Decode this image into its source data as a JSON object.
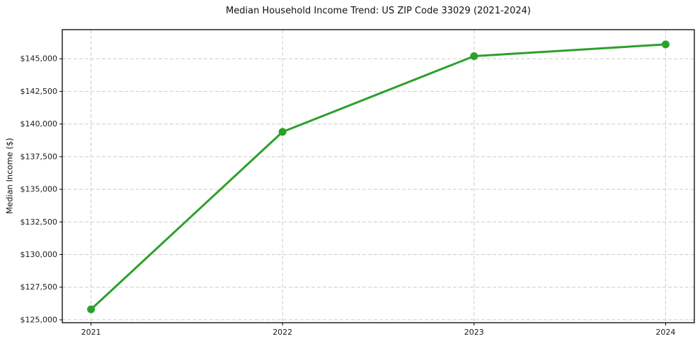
{
  "chart_data": {
    "type": "line",
    "title": "Median Household Income Trend: US ZIP Code 33029 (2021-2024)",
    "xlabel": "",
    "ylabel": "Median Income ($)",
    "x": [
      2021,
      2022,
      2023,
      2024
    ],
    "x_tick_labels": [
      "2021",
      "2022",
      "2023",
      "2024"
    ],
    "series": [
      {
        "name": "Median Household Income",
        "values": [
          125800,
          139400,
          145200,
          146100
        ],
        "color": "#2ca02c",
        "marker": "circle"
      }
    ],
    "y_ticks": [
      125000,
      127500,
      130000,
      132500,
      135000,
      137500,
      140000,
      142500,
      145000
    ],
    "y_tick_labels": [
      "$125,000",
      "$127,500",
      "$130,000",
      "$132,500",
      "$135,000",
      "$137,500",
      "$140,000",
      "$142,500",
      "$145,000"
    ],
    "xlim": [
      2020.85,
      2024.15
    ],
    "ylim": [
      124780,
      147230
    ],
    "grid": true,
    "grid_line_style": "dashed",
    "legend_position": "none",
    "colors": {
      "line": "#2ca02c",
      "grid": "#cccccc",
      "axis": "#000000",
      "tick_text": "#1a1a1a",
      "background": "#ffffff"
    }
  }
}
